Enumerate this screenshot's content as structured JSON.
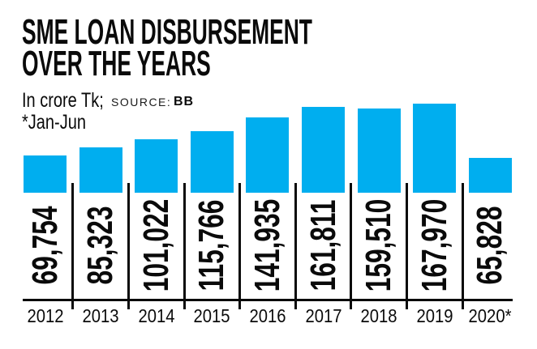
{
  "header": {
    "title_line1": "SME LOAN DISBURSEMENT",
    "title_line2": "OVER THE YEARS",
    "unit_label": "In crore Tk;",
    "source_label": "SOURCE:",
    "source_value": "BB",
    "footnote": "*Jan-Jun"
  },
  "chart_data": {
    "type": "bar",
    "title": "SME LOAN DISBURSEMENT OVER THE YEARS",
    "unit": "In crore Tk",
    "source": "BB",
    "footnote": "*Jan-Jun",
    "categories": [
      "2012",
      "2013",
      "2014",
      "2015",
      "2016",
      "2017",
      "2018",
      "2019",
      "2020*"
    ],
    "values": [
      69754,
      85323,
      101022,
      115766,
      141935,
      161811,
      159510,
      167970,
      65828
    ],
    "value_labels": [
      "69,754",
      "85,323",
      "101,022",
      "115,766",
      "141,935",
      "161,811",
      "159,510",
      "167,970",
      "65,828"
    ],
    "bar_color": "#00AEEF",
    "axis_color": "#0a0a0a",
    "ylim": [
      0,
      167970
    ],
    "grid": false,
    "legend": "none",
    "value_label_rotation": -90,
    "value_label_position": "below-bar"
  }
}
